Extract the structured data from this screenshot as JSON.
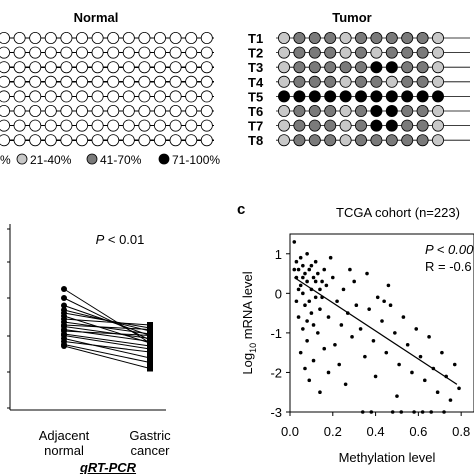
{
  "methylation_panel": {
    "normal_title": "Normal",
    "tumor_title": "Tumor",
    "tumor_rows": [
      "T1",
      "T2",
      "T3",
      "T4",
      "T5",
      "T6",
      "T7",
      "T8"
    ],
    "legend": [
      "%",
      "21-40%",
      "41-70%",
      "71-100%"
    ],
    "legend_colors": [
      "#ffffff",
      "#c8c8c8",
      "#7a7a7a",
      "#000000"
    ],
    "normal_grid": [
      [
        0,
        0,
        0,
        0,
        0,
        0,
        0,
        0,
        0,
        0,
        0,
        0,
        0,
        0
      ],
      [
        0,
        0,
        0,
        0,
        0,
        0,
        0,
        0,
        0,
        0,
        0,
        0,
        0,
        0
      ],
      [
        0,
        0,
        0,
        0,
        0,
        0,
        0,
        0,
        0,
        0,
        0,
        0,
        0,
        0
      ],
      [
        0,
        0,
        0,
        0,
        0,
        0,
        0,
        0,
        0,
        0,
        0,
        0,
        0,
        0
      ],
      [
        0,
        0,
        0,
        0,
        0,
        0,
        0,
        0,
        0,
        0,
        0,
        0,
        0,
        0
      ],
      [
        0,
        0,
        0,
        0,
        0,
        0,
        0,
        0,
        0,
        0,
        0,
        0,
        0,
        0
      ],
      [
        0,
        0,
        0,
        0,
        0,
        0,
        0,
        0,
        0,
        0,
        0,
        0,
        0,
        0
      ],
      [
        0,
        0,
        0,
        0,
        0,
        0,
        0,
        0,
        0,
        0,
        0,
        0,
        0,
        0
      ]
    ],
    "tumor_grid": [
      [
        1,
        2,
        2,
        2,
        1,
        2,
        2,
        2,
        2,
        2,
        1
      ],
      [
        1,
        2,
        2,
        2,
        1,
        2,
        1,
        2,
        2,
        2,
        1
      ],
      [
        1,
        2,
        2,
        2,
        2,
        2,
        3,
        3,
        2,
        2,
        1
      ],
      [
        1,
        2,
        2,
        2,
        1,
        2,
        2,
        1,
        2,
        2,
        1
      ],
      [
        3,
        3,
        3,
        3,
        3,
        3,
        3,
        3,
        3,
        3,
        3
      ],
      [
        1,
        2,
        2,
        2,
        1,
        2,
        3,
        3,
        2,
        2,
        1
      ],
      [
        1,
        2,
        2,
        2,
        1,
        2,
        3,
        3,
        2,
        2,
        1
      ],
      [
        1,
        2,
        2,
        2,
        1,
        2,
        2,
        2,
        2,
        2,
        1
      ]
    ]
  },
  "pcr_panel": {
    "p_text": "P < 0.01",
    "x_labels": [
      [
        "Adjacent",
        "normal"
      ],
      [
        "Gastric",
        "cancer"
      ]
    ],
    "xlabel": "qRT-PCR"
  },
  "tcga_panel": {
    "panel_letter": "c",
    "title": "TCGA cohort (n=223)",
    "p_text": "P < 0.00",
    "r_text": "R = -0.6",
    "xlabel": "Methylation level",
    "ylabel_prefix": "Log",
    "ylabel_sub": "10",
    "ylabel_suffix": " mRNA level",
    "x_ticks": [
      "0.0",
      "0.2",
      "0.4",
      "0.6",
      "0.8"
    ],
    "y_ticks": [
      "1",
      "0",
      "-1",
      "-2",
      "-3"
    ]
  },
  "chart_data": [
    {
      "type": "line",
      "title": "",
      "xlabel": "qRT-PCR",
      "categories": [
        "Adjacent normal",
        "Gastric cancer"
      ],
      "ylim": [
        0,
        1
      ],
      "annotation": "P < 0.01",
      "series": [
        {
          "values": [
            0.74,
            0.38
          ]
        },
        {
          "values": [
            0.68,
            0.4
          ]
        },
        {
          "values": [
            0.63,
            0.43
          ]
        },
        {
          "values": [
            0.6,
            0.46
          ]
        },
        {
          "values": [
            0.58,
            0.48
          ]
        },
        {
          "values": [
            0.56,
            0.38
          ]
        },
        {
          "values": [
            0.54,
            0.5
          ]
        },
        {
          "values": [
            0.52,
            0.44
          ]
        },
        {
          "values": [
            0.5,
            0.47
          ]
        },
        {
          "values": [
            0.49,
            0.41
          ]
        },
        {
          "values": [
            0.47,
            0.39
          ]
        },
        {
          "values": [
            0.46,
            0.43
          ]
        },
        {
          "values": [
            0.44,
            0.36
          ]
        },
        {
          "values": [
            0.43,
            0.34
          ]
        },
        {
          "values": [
            0.41,
            0.28
          ]
        },
        {
          "values": [
            0.39,
            0.32
          ]
        },
        {
          "values": [
            0.37,
            0.25
          ]
        },
        {
          "values": [
            0.36,
            0.21
          ]
        }
      ]
    },
    {
      "type": "scatter",
      "title": "TCGA cohort (n=223)",
      "xlabel": "Methylation level",
      "ylabel": "Log10 mRNA level",
      "xlim": [
        0,
        0.8
      ],
      "ylim": [
        -3,
        1.5
      ],
      "annotations": [
        "P < 0.00",
        "R = -0.6"
      ],
      "fit_line": {
        "x": [
          0.02,
          0.78
        ],
        "y": [
          0.4,
          -2.3
        ]
      },
      "points": [
        [
          0.02,
          1.3
        ],
        [
          0.03,
          0.8
        ],
        [
          0.04,
          0.6
        ],
        [
          0.05,
          0.9
        ],
        [
          0.06,
          0.7
        ],
        [
          0.07,
          0.5
        ],
        [
          0.08,
          1.0
        ],
        [
          0.09,
          0.6
        ],
        [
          0.03,
          0.4
        ],
        [
          0.05,
          0.2
        ],
        [
          0.06,
          0.0
        ],
        [
          0.07,
          -0.3
        ],
        [
          0.04,
          -0.6
        ],
        [
          0.08,
          0.3
        ],
        [
          0.1,
          0.7
        ],
        [
          0.11,
          0.4
        ],
        [
          0.12,
          0.8
        ],
        [
          0.13,
          0.5
        ],
        [
          0.14,
          0.1
        ],
        [
          0.09,
          -0.2
        ],
        [
          0.1,
          -0.5
        ],
        [
          0.06,
          -0.9
        ],
        [
          0.08,
          -1.2
        ],
        [
          0.12,
          -0.1
        ],
        [
          0.15,
          0.3
        ],
        [
          0.16,
          0.6
        ],
        [
          0.11,
          -0.8
        ],
        [
          0.05,
          -1.5
        ],
        [
          0.07,
          -1.9
        ],
        [
          0.09,
          -2.2
        ],
        [
          0.13,
          -1.0
        ],
        [
          0.14,
          -0.4
        ],
        [
          0.04,
          0.1
        ],
        [
          0.02,
          0.6
        ],
        [
          0.03,
          -0.2
        ],
        [
          0.06,
          0.4
        ],
        [
          0.1,
          0.1
        ],
        [
          0.12,
          0.3
        ],
        [
          0.15,
          -0.1
        ],
        [
          0.17,
          0.2
        ],
        [
          0.18,
          -0.6
        ],
        [
          0.2,
          0.4
        ],
        [
          0.22,
          -0.2
        ],
        [
          0.24,
          -0.8
        ],
        [
          0.21,
          -1.3
        ],
        [
          0.25,
          0.1
        ],
        [
          0.27,
          -0.5
        ],
        [
          0.29,
          -1.1
        ],
        [
          0.23,
          -1.8
        ],
        [
          0.26,
          -2.3
        ],
        [
          0.31,
          -0.3
        ],
        [
          0.33,
          -0.9
        ],
        [
          0.35,
          -1.6
        ],
        [
          0.3,
          0.3
        ],
        [
          0.37,
          -0.4
        ],
        [
          0.39,
          -1.2
        ],
        [
          0.41,
          -0.1
        ],
        [
          0.43,
          -0.7
        ],
        [
          0.45,
          -1.5
        ],
        [
          0.4,
          -2.1
        ],
        [
          0.47,
          -0.3
        ],
        [
          0.49,
          -1.0
        ],
        [
          0.51,
          -1.8
        ],
        [
          0.53,
          -0.6
        ],
        [
          0.55,
          -1.3
        ],
        [
          0.57,
          -2.0
        ],
        [
          0.5,
          -2.6
        ],
        [
          0.59,
          -0.9
        ],
        [
          0.61,
          -1.6
        ],
        [
          0.63,
          -2.2
        ],
        [
          0.65,
          -1.1
        ],
        [
          0.67,
          -1.9
        ],
        [
          0.69,
          -2.5
        ],
        [
          0.71,
          -1.5
        ],
        [
          0.73,
          -2.1
        ],
        [
          0.75,
          -2.7
        ],
        [
          0.77,
          -1.8
        ],
        [
          0.79,
          -2.4
        ],
        [
          0.44,
          -0.2
        ],
        [
          0.46,
          0.2
        ],
        [
          0.36,
          0.5
        ],
        [
          0.28,
          0.6
        ],
        [
          0.19,
          0.9
        ],
        [
          0.16,
          -1.4
        ],
        [
          0.18,
          -2.0
        ],
        [
          0.14,
          -2.5
        ],
        [
          0.11,
          -1.7
        ],
        [
          0.08,
          -0.7
        ],
        [
          0.34,
          -3.0
        ],
        [
          0.38,
          -3.0
        ],
        [
          0.48,
          -3.0
        ],
        [
          0.52,
          -3.0
        ],
        [
          0.58,
          -3.0
        ],
        [
          0.62,
          -3.0
        ],
        [
          0.66,
          -3.0
        ],
        [
          0.72,
          -3.0
        ]
      ]
    }
  ]
}
